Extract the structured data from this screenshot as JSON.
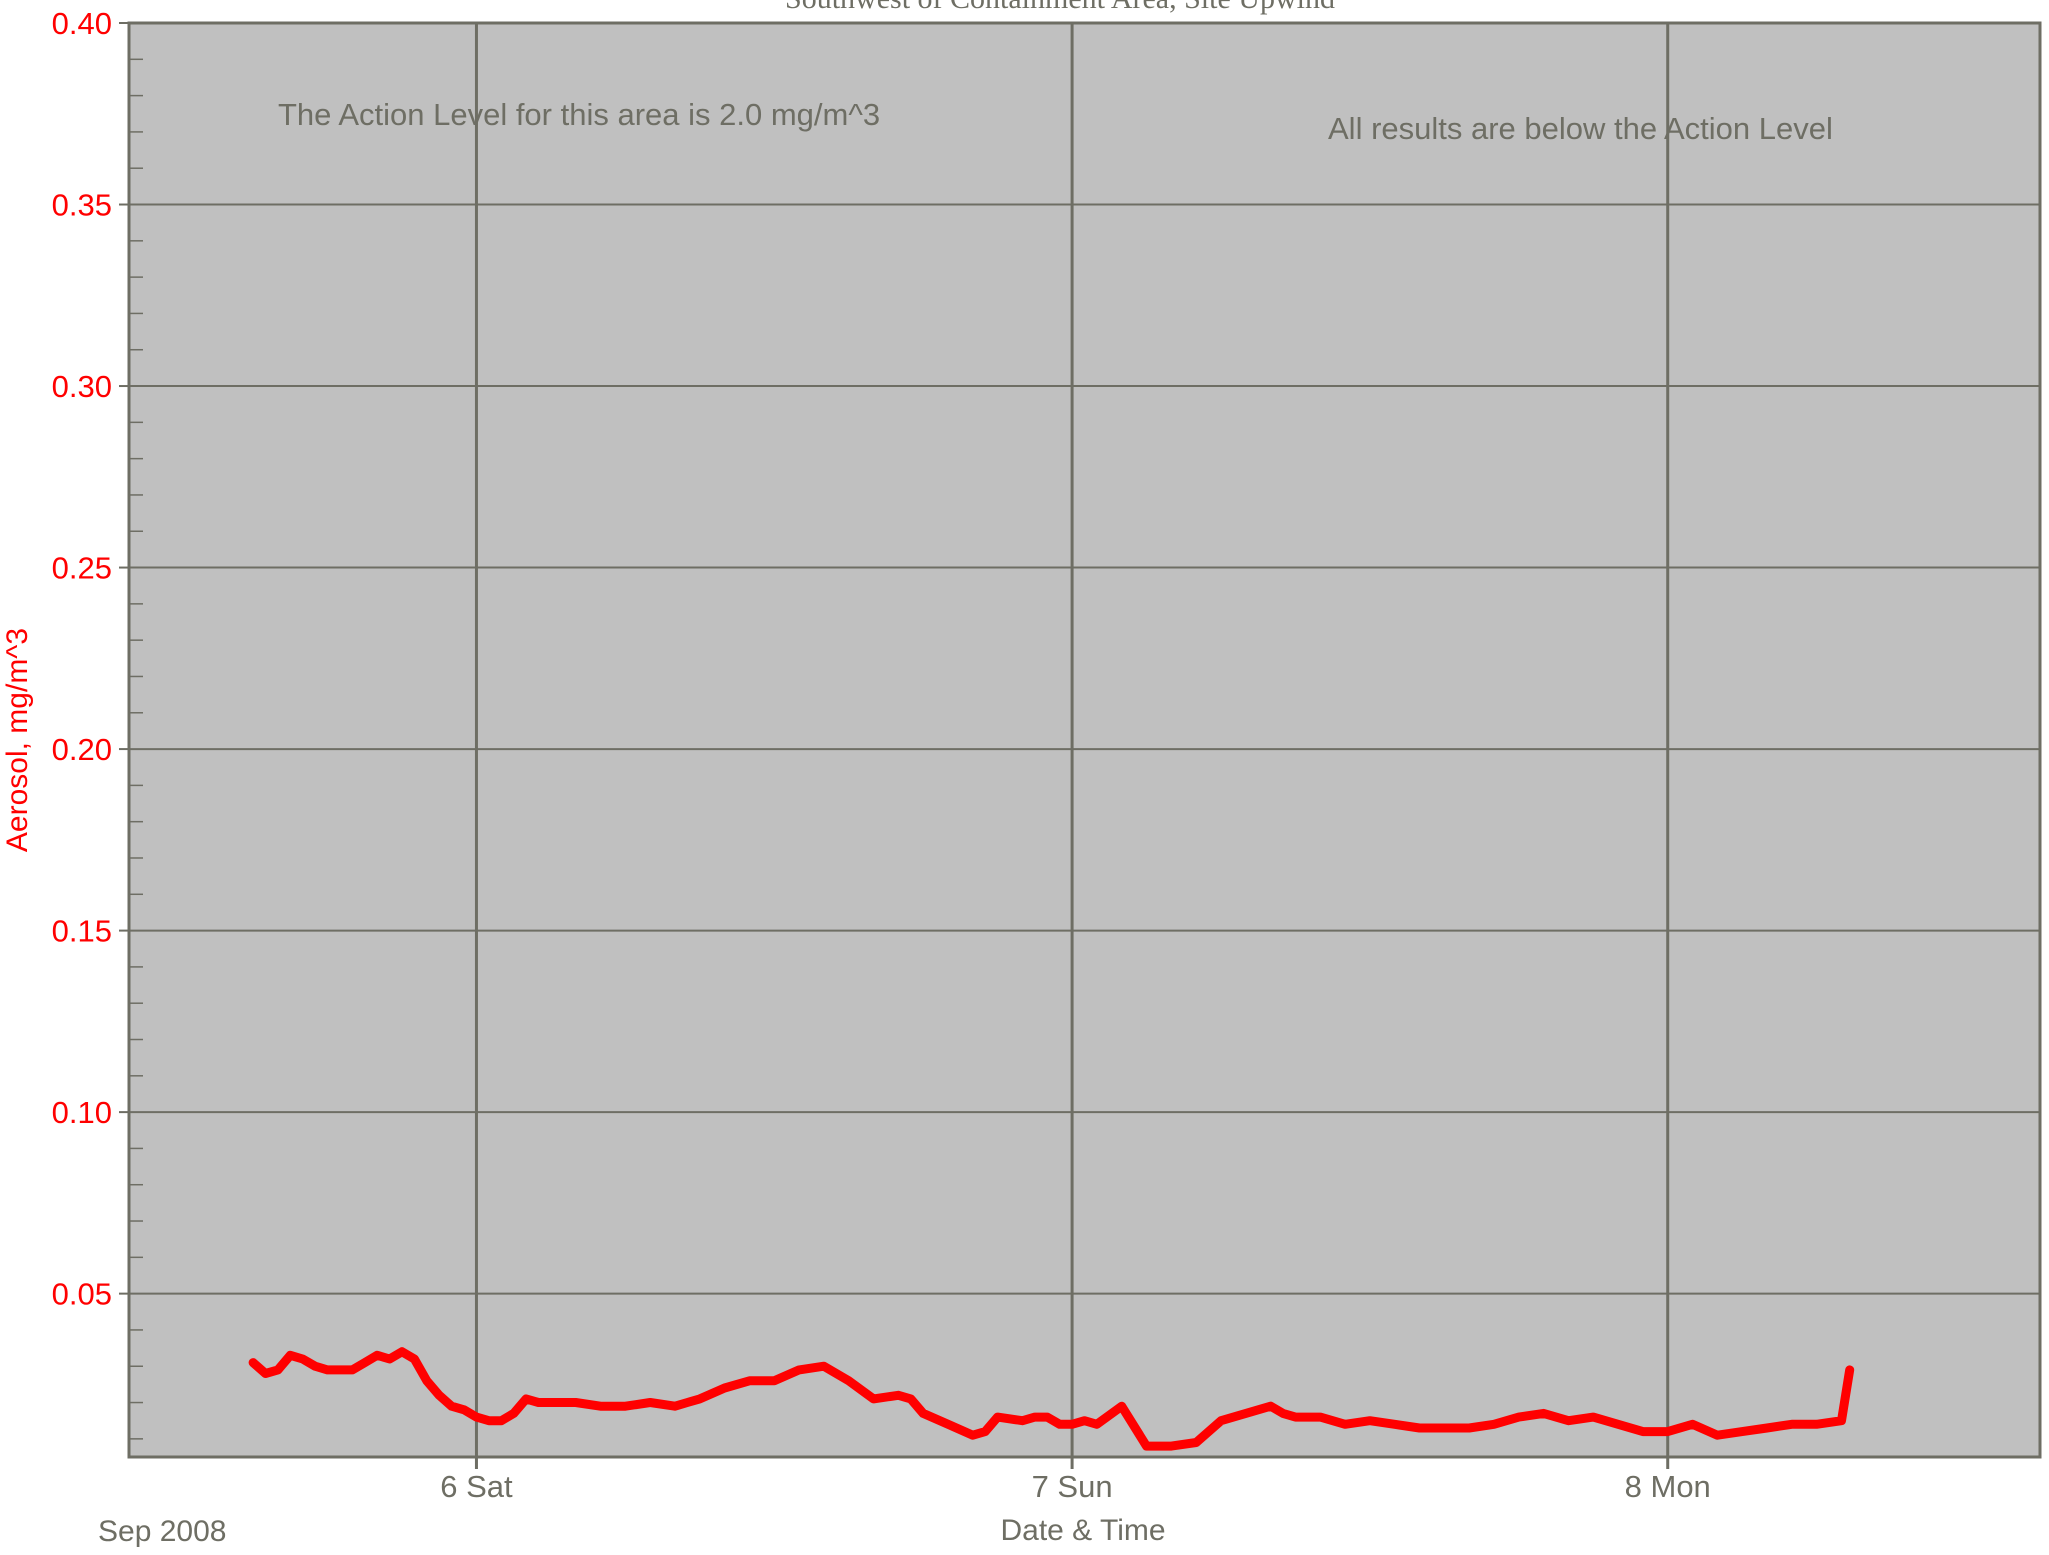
{
  "chart_data": {
    "type": "line",
    "title": "Southwest of Containment Area, Site Upwind",
    "xlabel": "Date & Time",
    "ylabel": "Aerosol, mg/m^3",
    "x_tick_labels": [
      "6 Sat",
      "7 Sun",
      "8 Mon"
    ],
    "x_corner_label": "Sep 2008",
    "y_tick_labels": [
      "0.05",
      "0.10",
      "0.15",
      "0.20",
      "0.25",
      "0.30",
      "0.35",
      "0.40"
    ],
    "ylim": [
      0.005,
      0.4
    ],
    "xlim": [
      "2008-09-05 10:00",
      "2008-09-08 15:00"
    ],
    "grid": true,
    "annotations": [
      "The Action Level for this area is 2.0 mg/m^3",
      "All results are below the Action Level"
    ],
    "colors": {
      "series": "#ff0000",
      "axis_text": "#ff0000",
      "plot_background": "#c0c0c0",
      "grid": "#6e6e64",
      "annotation_text": "#6e6e64"
    },
    "series": [
      {
        "x": [
          "2008-09-05 15:00",
          "2008-09-05 15:30",
          "2008-09-05 16:00",
          "2008-09-05 16:30",
          "2008-09-05 17:00",
          "2008-09-05 17:30",
          "2008-09-05 18:00",
          "2008-09-05 18:30",
          "2008-09-05 19:00",
          "2008-09-05 19:30",
          "2008-09-05 20:00",
          "2008-09-05 20:30",
          "2008-09-05 21:00",
          "2008-09-05 21:30",
          "2008-09-05 22:00",
          "2008-09-05 22:30",
          "2008-09-05 23:00",
          "2008-09-05 23:30",
          "2008-09-06 00:00",
          "2008-09-06 00:30",
          "2008-09-06 01:00",
          "2008-09-06 01:30",
          "2008-09-06 02:00",
          "2008-09-06 02:30",
          "2008-09-06 03:00",
          "2008-09-06 04:00",
          "2008-09-06 05:00",
          "2008-09-06 06:00",
          "2008-09-06 07:00",
          "2008-09-06 08:00",
          "2008-09-06 08:30",
          "2008-09-06 09:00",
          "2008-09-06 10:00",
          "2008-09-06 11:00",
          "2008-09-06 12:00",
          "2008-09-06 13:00",
          "2008-09-06 14:00",
          "2008-09-06 15:00",
          "2008-09-06 16:00",
          "2008-09-06 17:00",
          "2008-09-06 17:30",
          "2008-09-06 18:00",
          "2008-09-06 19:00",
          "2008-09-06 20:00",
          "2008-09-06 20:30",
          "2008-09-06 21:00",
          "2008-09-06 22:00",
          "2008-09-06 22:30",
          "2008-09-06 23:00",
          "2008-09-06 23:30",
          "2008-09-07 00:00",
          "2008-09-07 00:30",
          "2008-09-07 01:00",
          "2008-09-07 02:00",
          "2008-09-07 03:00",
          "2008-09-07 04:00",
          "2008-09-07 05:00",
          "2008-09-07 06:00",
          "2008-09-07 07:00",
          "2008-09-07 08:00",
          "2008-09-07 08:30",
          "2008-09-07 09:00",
          "2008-09-07 10:00",
          "2008-09-07 11:00",
          "2008-09-07 12:00",
          "2008-09-07 13:00",
          "2008-09-07 14:00",
          "2008-09-07 15:00",
          "2008-09-07 16:00",
          "2008-09-07 17:00",
          "2008-09-07 18:00",
          "2008-09-07 19:00",
          "2008-09-07 20:00",
          "2008-09-07 21:00",
          "2008-09-07 22:00",
          "2008-09-07 23:00",
          "2008-09-08 00:00",
          "2008-09-08 01:00",
          "2008-09-08 02:00",
          "2008-09-08 03:00",
          "2008-09-08 04:00",
          "2008-09-08 05:00",
          "2008-09-08 06:00",
          "2008-09-08 07:00",
          "2008-09-08 07:20"
        ],
        "values": [
          0.031,
          0.028,
          0.029,
          0.033,
          0.032,
          0.03,
          0.029,
          0.029,
          0.029,
          0.031,
          0.033,
          0.032,
          0.034,
          0.032,
          0.026,
          0.022,
          0.019,
          0.018,
          0.016,
          0.015,
          0.015,
          0.017,
          0.021,
          0.02,
          0.02,
          0.02,
          0.019,
          0.019,
          0.02,
          0.019,
          0.02,
          0.021,
          0.024,
          0.026,
          0.026,
          0.029,
          0.03,
          0.026,
          0.021,
          0.022,
          0.021,
          0.017,
          0.014,
          0.011,
          0.012,
          0.016,
          0.015,
          0.016,
          0.016,
          0.014,
          0.014,
          0.015,
          0.014,
          0.019,
          0.008,
          0.008,
          0.009,
          0.015,
          0.017,
          0.019,
          0.017,
          0.016,
          0.016,
          0.014,
          0.015,
          0.014,
          0.013,
          0.013,
          0.013,
          0.014,
          0.016,
          0.017,
          0.015,
          0.016,
          0.014,
          0.012,
          0.012,
          0.014,
          0.011,
          0.012,
          0.013,
          0.014,
          0.014,
          0.015,
          0.029
        ]
      }
    ]
  }
}
